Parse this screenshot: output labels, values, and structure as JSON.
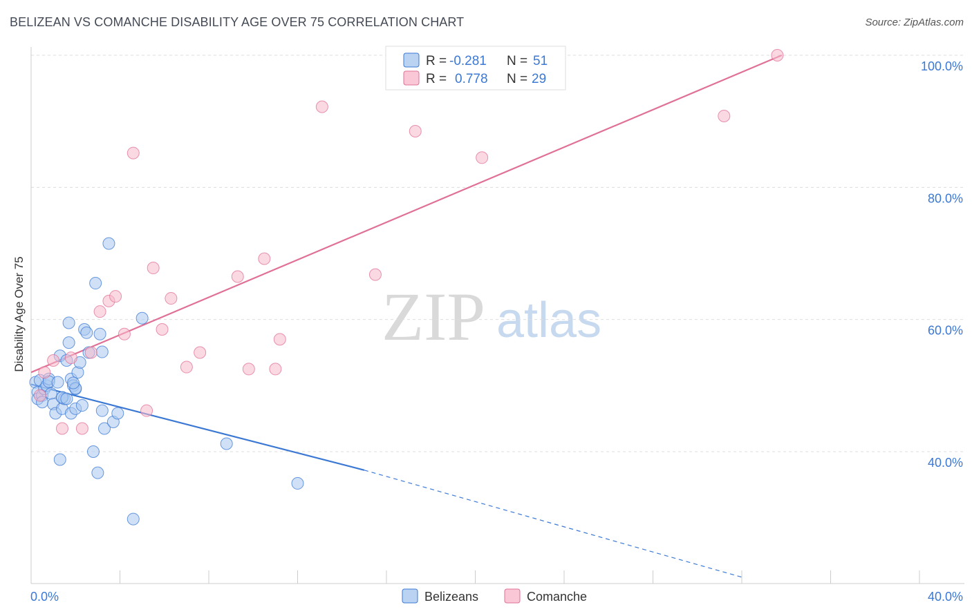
{
  "header": {
    "title": "BELIZEAN VS COMANCHE DISABILITY AGE OVER 75 CORRELATION CHART",
    "source": "Source: ZipAtlas.com"
  },
  "watermark": {
    "zip": "ZIP",
    "atlas": "atlas"
  },
  "legend": {
    "r_label": "R =",
    "n_label": "N =",
    "series": [
      {
        "name": "Belizeans",
        "r": "-0.281",
        "n": "51",
        "fill": "#a9c8f0",
        "stroke": "#3b78d4"
      },
      {
        "name": "Comanche",
        "r": "0.778",
        "n": "29",
        "fill": "#f7b9cb",
        "stroke": "#e07095"
      }
    ]
  },
  "chart_data": {
    "type": "scatter",
    "title": "BELIZEAN VS COMANCHE DISABILITY AGE OVER 75 CORRELATION CHART",
    "xlabel": "",
    "ylabel": "Disability Age Over 75",
    "xlim": [
      0,
      40
    ],
    "ylim": [
      20,
      102
    ],
    "x_tick_labels": [
      "0.0%",
      "40.0%"
    ],
    "y_ticks": [
      40,
      60,
      80,
      100
    ],
    "y_tick_labels": [
      "40.0%",
      "60.0%",
      "80.0%",
      "100.0%"
    ],
    "grid": "horizontal dashed",
    "legend_position": "top-center",
    "series": [
      {
        "name": "Belizeans",
        "color": "#3b78d4",
        "fill": "#a9c8f0",
        "trend": {
          "x": [
            0.0,
            15.0
          ],
          "y": [
            50.2,
            37.2
          ],
          "dashed_to": [
            32.0,
            21.0
          ]
        },
        "points": [
          [
            0.2,
            50.5
          ],
          [
            0.3,
            49.0
          ],
          [
            0.3,
            48.0
          ],
          [
            0.4,
            50.8
          ],
          [
            0.5,
            48.5
          ],
          [
            0.5,
            47.5
          ],
          [
            0.6,
            49.5
          ],
          [
            0.7,
            50.0
          ],
          [
            0.8,
            51.0
          ],
          [
            0.9,
            48.8
          ],
          [
            1.0,
            47.2
          ],
          [
            0.8,
            50.6
          ],
          [
            1.2,
            50.5
          ],
          [
            1.1,
            45.8
          ],
          [
            1.3,
            54.5
          ],
          [
            1.4,
            46.5
          ],
          [
            1.4,
            48.2
          ],
          [
            1.5,
            48.0
          ],
          [
            1.6,
            53.8
          ],
          [
            1.7,
            56.5
          ],
          [
            1.3,
            38.8
          ],
          [
            1.4,
            48.2
          ],
          [
            1.6,
            48.0
          ],
          [
            1.8,
            45.8
          ],
          [
            1.8,
            51.0
          ],
          [
            1.9,
            50.0
          ],
          [
            1.7,
            59.5
          ],
          [
            2.0,
            46.5
          ],
          [
            2.0,
            49.5
          ],
          [
            2.1,
            52.0
          ],
          [
            2.3,
            47.0
          ],
          [
            2.2,
            53.5
          ],
          [
            2.4,
            58.5
          ],
          [
            2.5,
            58.0
          ],
          [
            2.0,
            49.6
          ],
          [
            1.9,
            50.4
          ],
          [
            2.6,
            55.0
          ],
          [
            2.8,
            40.0
          ],
          [
            3.0,
            36.8
          ],
          [
            2.9,
            65.5
          ],
          [
            3.3,
            43.5
          ],
          [
            3.5,
            71.5
          ],
          [
            3.7,
            44.5
          ],
          [
            3.9,
            45.8
          ],
          [
            3.2,
            46.2
          ],
          [
            3.2,
            55.1
          ],
          [
            3.1,
            57.8
          ],
          [
            4.6,
            29.8
          ],
          [
            5.0,
            60.2
          ],
          [
            8.8,
            41.2
          ],
          [
            12.0,
            35.2
          ]
        ]
      },
      {
        "name": "Comanche",
        "color": "#e07095",
        "fill": "#f7b9cb",
        "trend": {
          "x": [
            0.0,
            33.8
          ],
          "y": [
            52.0,
            100.0
          ]
        },
        "points": [
          [
            0.4,
            48.5
          ],
          [
            0.6,
            52.0
          ],
          [
            1.0,
            53.8
          ],
          [
            1.4,
            43.5
          ],
          [
            1.8,
            54.2
          ],
          [
            2.3,
            43.5
          ],
          [
            2.7,
            55.0
          ],
          [
            3.1,
            61.2
          ],
          [
            3.5,
            62.8
          ],
          [
            3.8,
            63.5
          ],
          [
            4.2,
            57.8
          ],
          [
            4.6,
            85.2
          ],
          [
            5.2,
            46.2
          ],
          [
            5.5,
            67.8
          ],
          [
            5.9,
            58.5
          ],
          [
            6.3,
            63.2
          ],
          [
            7.0,
            52.8
          ],
          [
            7.6,
            55.0
          ],
          [
            9.3,
            66.5
          ],
          [
            9.8,
            52.5
          ],
          [
            10.5,
            69.2
          ],
          [
            11.0,
            52.5
          ],
          [
            11.2,
            57.0
          ],
          [
            13.1,
            92.2
          ],
          [
            15.5,
            66.8
          ],
          [
            17.3,
            88.5
          ],
          [
            20.3,
            84.5
          ],
          [
            31.2,
            90.8
          ],
          [
            33.6,
            100.0
          ]
        ]
      }
    ]
  }
}
